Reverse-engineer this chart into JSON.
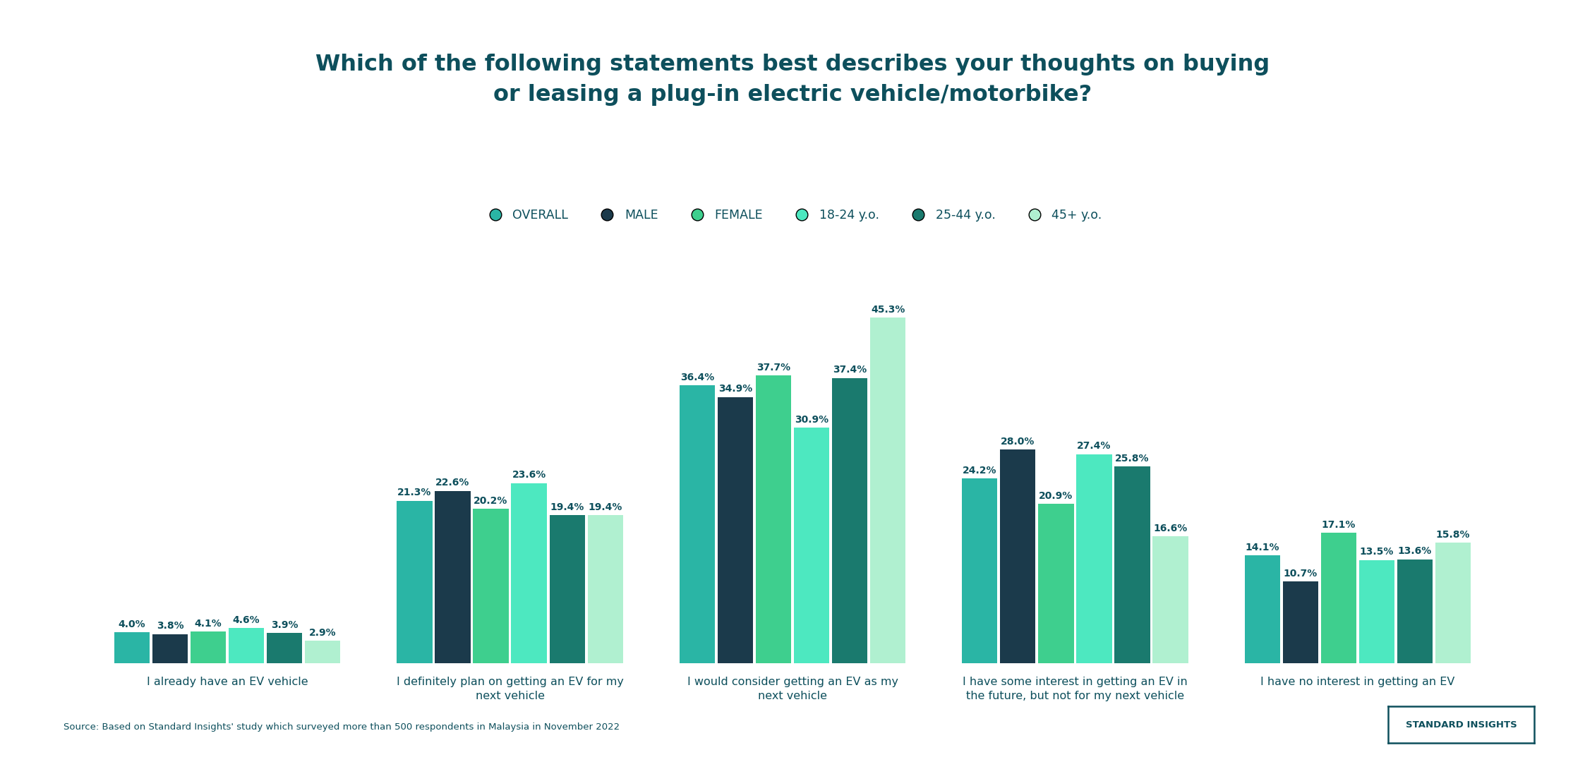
{
  "title_line1": "Which of the following statements best describes your thoughts on buying",
  "title_line2": "or leasing a plug-in electric vehicle/motorbike?",
  "title_color": "#0d4f5c",
  "background_color": "#ffffff",
  "categories": [
    "I already have an EV vehicle",
    "I definitely plan on getting an EV for my\nnext vehicle",
    "I would consider getting an EV as my\nnext vehicle",
    "I have some interest in getting an EV in\nthe future, but not for my next vehicle",
    "I have no interest in getting an EV"
  ],
  "series_labels": [
    "OVERALL",
    "MALE",
    "FEMALE",
    "18-24 y.o.",
    "25-44 y.o.",
    "45+ y.o."
  ],
  "series_colors": [
    "#2ab5a5",
    "#1b3a4b",
    "#3ecf8e",
    "#4de8c0",
    "#1a7a6e",
    "#b0f0d0"
  ],
  "data": [
    [
      4.0,
      3.8,
      4.1,
      4.6,
      3.9,
      2.9
    ],
    [
      21.3,
      22.6,
      20.2,
      23.6,
      19.4,
      19.4
    ],
    [
      36.4,
      34.9,
      37.7,
      30.9,
      37.4,
      45.3
    ],
    [
      24.2,
      28.0,
      20.9,
      27.4,
      25.8,
      16.6
    ],
    [
      14.1,
      10.7,
      17.1,
      13.5,
      13.6,
      15.8
    ]
  ],
  "footnote": "Source: Based on Standard Insights' study which surveyed more than 500 respondents in Malaysia in November 2022",
  "brand": "STANDARD INSIGHTS",
  "ylim": [
    0,
    52
  ],
  "bar_width": 0.135
}
